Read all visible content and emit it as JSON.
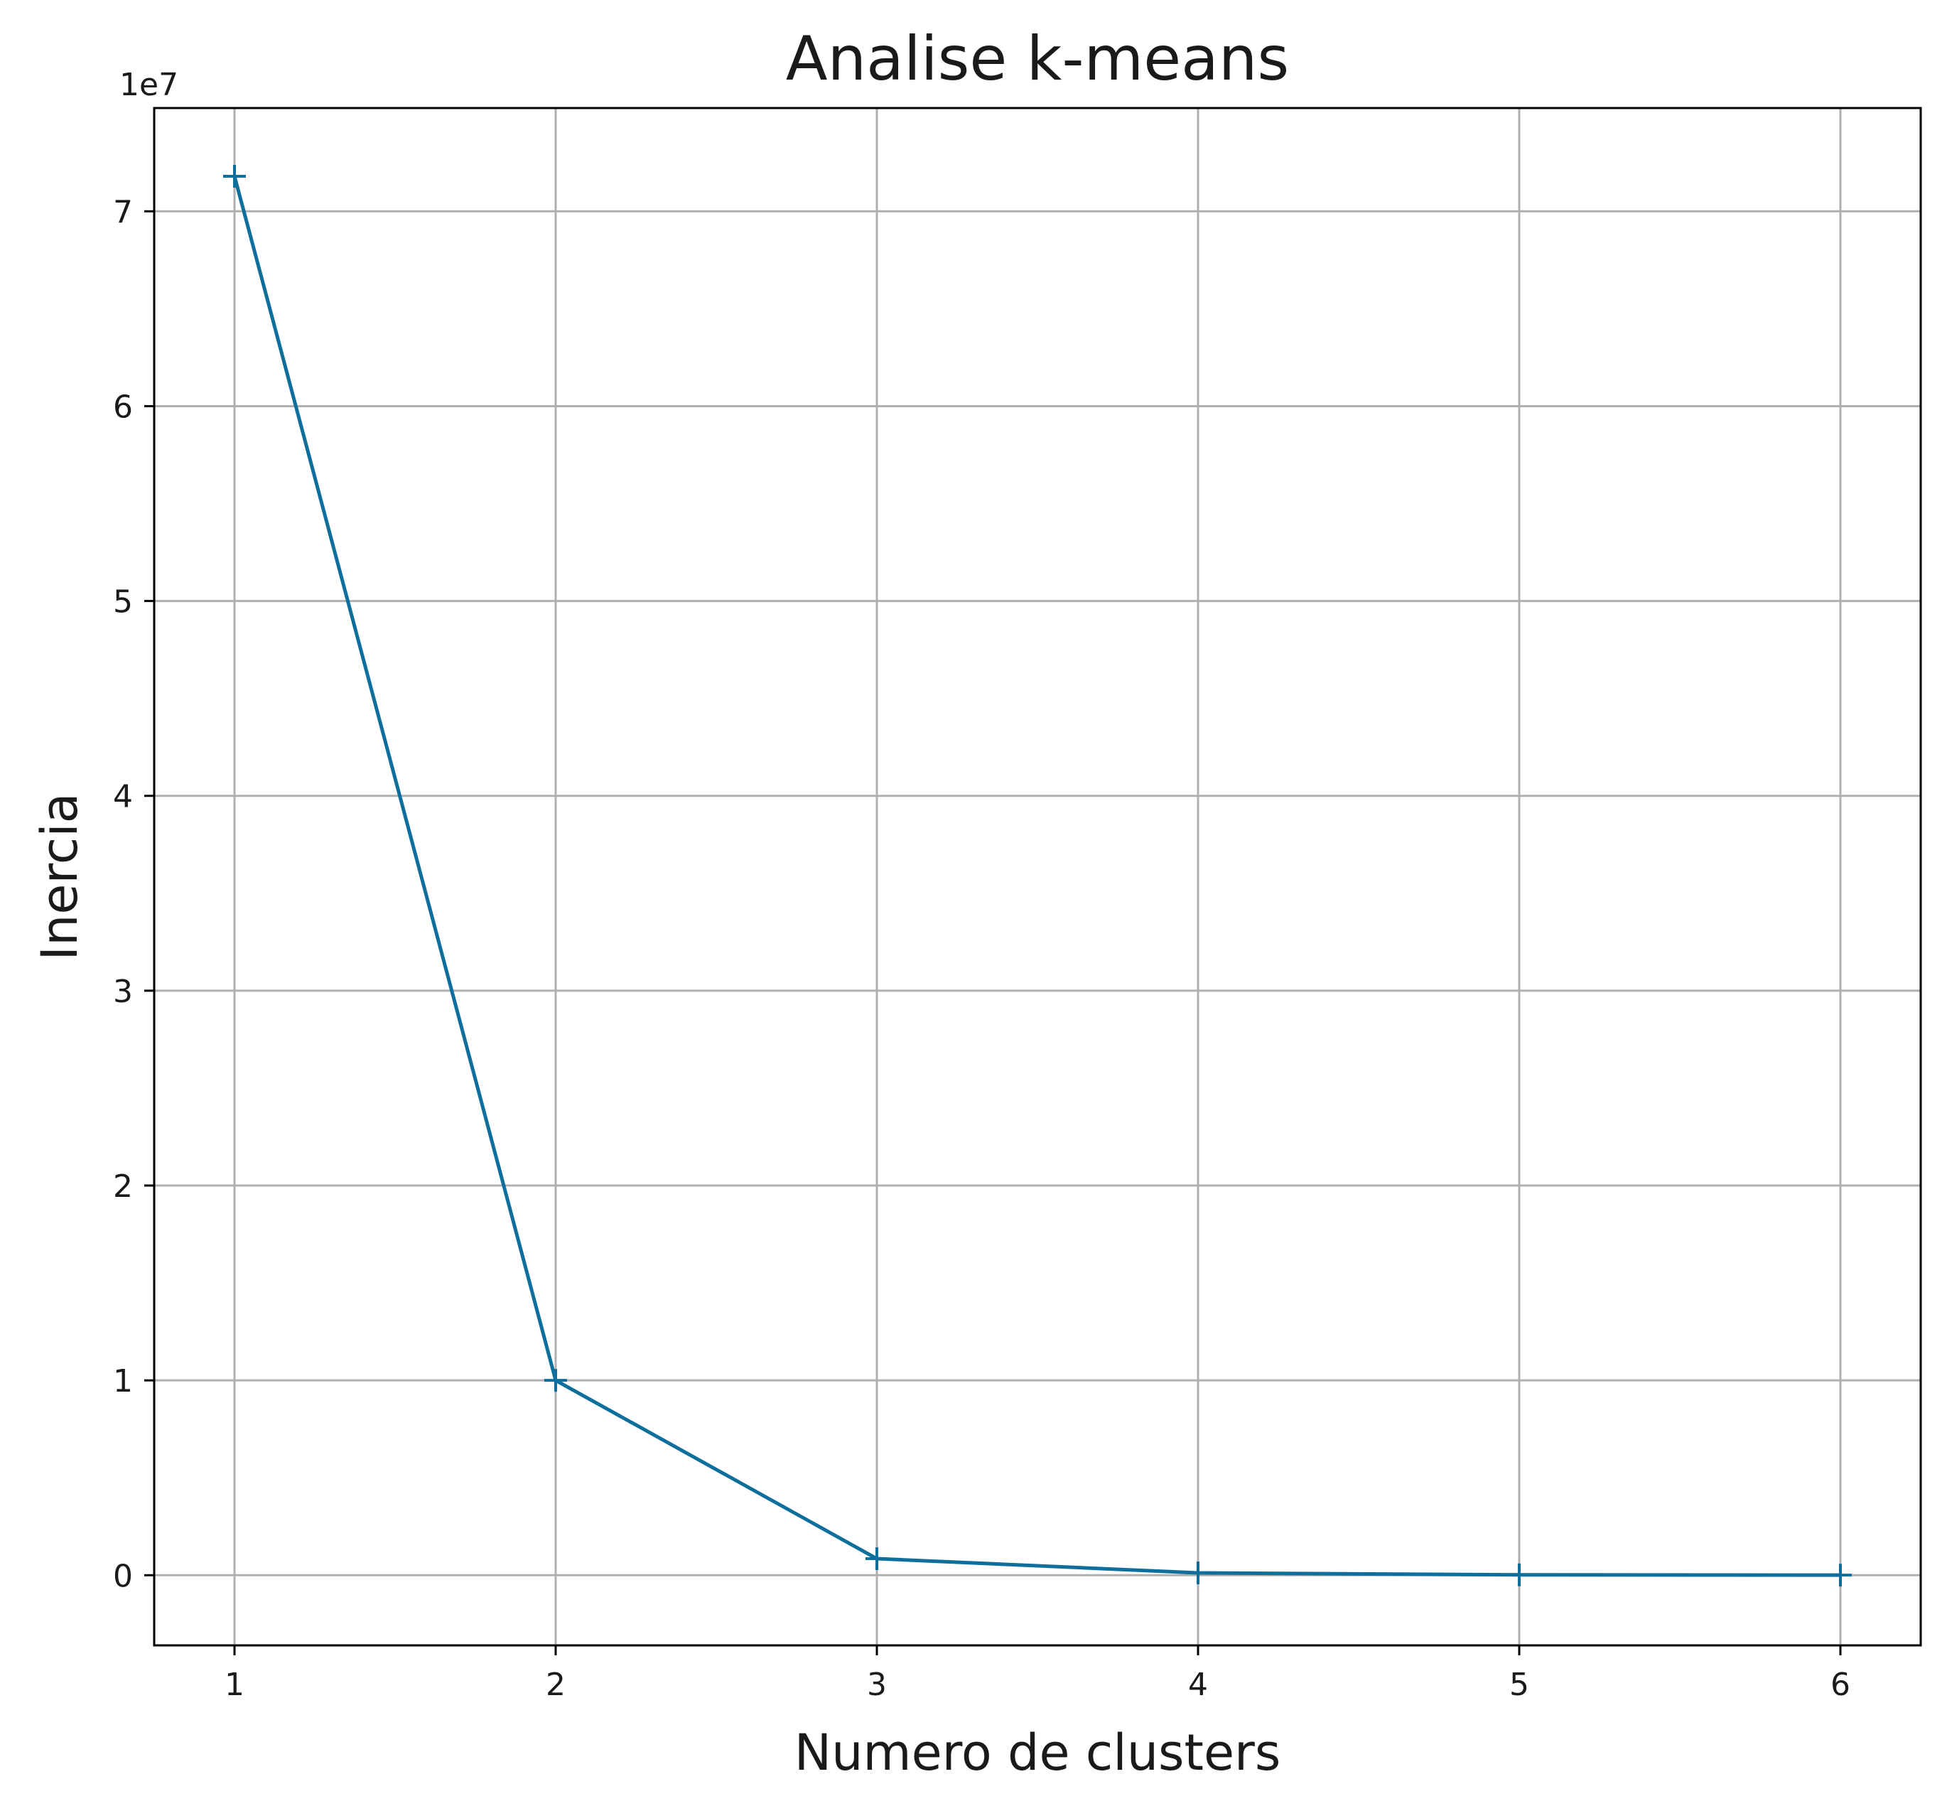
{
  "chart_data": {
    "type": "line",
    "title": "Analise k-means",
    "xlabel": "Numero de clusters",
    "ylabel": "Inercia",
    "y_offset_label": "1e7",
    "x": [
      1,
      2,
      3,
      4,
      5,
      6
    ],
    "series": [
      {
        "values": [
          71800000,
          10000000,
          850000,
          120000,
          20000,
          5000
        ]
      }
    ],
    "xlim": [
      0.75,
      6.25
    ],
    "ylim": [
      -3600000,
      75300000
    ],
    "x_ticks": [
      1,
      2,
      3,
      4,
      5,
      6
    ],
    "x_tick_labels": [
      "1",
      "2",
      "3",
      "4",
      "5",
      "6"
    ],
    "y_ticks": [
      0,
      10000000,
      20000000,
      30000000,
      40000000,
      50000000,
      60000000,
      70000000
    ],
    "y_tick_labels": [
      "0",
      "1",
      "2",
      "3",
      "4",
      "5",
      "6",
      "7"
    ],
    "grid": true,
    "marker": "plus",
    "color": "#0e6e9c"
  }
}
